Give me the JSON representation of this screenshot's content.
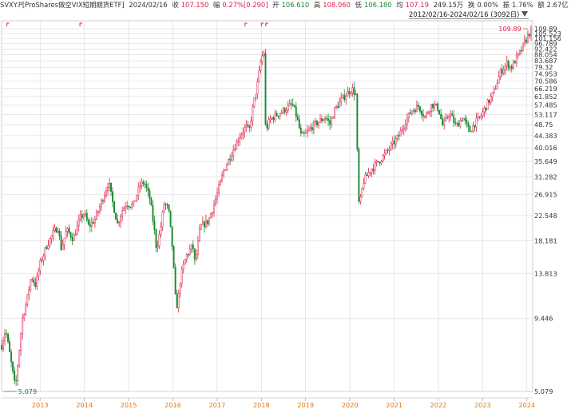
{
  "header": {
    "symbol": "SVXY.P[ProShares做空VIX短期期货ETF]",
    "date": "2024/02/16",
    "close_label": "收",
    "close": "107.150",
    "change_label": "幅",
    "change": "0.27%[0.290]",
    "open_label": "开",
    "open": "106.610",
    "high_label": "高",
    "high": "108.060",
    "low_label": "低",
    "low": "106.180",
    "avg_label": "均",
    "avg": "107.19",
    "volume": "249.15万",
    "turnover_label": "换",
    "turnover": "0.00%",
    "amplitude_label": "振",
    "amplitude": "1.76%",
    "amount_label": "额",
    "amount": "2.67亿"
  },
  "range": {
    "label": "2012/02/16-2024/02/16 (3092日)"
  },
  "colors": {
    "up": "#e0204a",
    "down": "#1a8a2f",
    "grid": "#d8d8d8",
    "axis_year": "#e07a10",
    "frame": "#b0b0b0"
  },
  "chart_data": {
    "type": "candlestick",
    "y_scale": "log",
    "ylim": [
      5.079,
      109.89
    ],
    "y_ticks": [
      5.079,
      9.446,
      13.813,
      18.181,
      22.548,
      26.915,
      31.282,
      35.649,
      40.016,
      44.383,
      48.75,
      53.117,
      57.485,
      61.852,
      66.219,
      70.586,
      74.953,
      79.32,
      83.687,
      88.054,
      92.422,
      96.789,
      101.156,
      105.523,
      109.89
    ],
    "x_ticks": [
      "2013",
      "2014",
      "2015",
      "2016",
      "2017",
      "2018",
      "2019",
      "2020",
      "2021",
      "2022",
      "2023",
      "2024"
    ],
    "x_range": [
      2012.13,
      2024.13
    ],
    "annotations": [
      {
        "label": "5.079",
        "x": 2012.18,
        "y": 5.079,
        "kind": "low"
      },
      {
        "label": "109.89",
        "x": 2024.02,
        "y": 109.89,
        "kind": "high"
      }
    ],
    "path": [
      [
        2012.13,
        7.5
      ],
      [
        2012.22,
        8.6
      ],
      [
        2012.3,
        7.2
      ],
      [
        2012.38,
        6.0
      ],
      [
        2012.44,
        5.2
      ],
      [
        2012.5,
        6.5
      ],
      [
        2012.6,
        9.4
      ],
      [
        2012.7,
        11.0
      ],
      [
        2012.8,
        13.5
      ],
      [
        2012.9,
        12.5
      ],
      [
        2013.0,
        15.0
      ],
      [
        2013.15,
        17.5
      ],
      [
        2013.3,
        19.5
      ],
      [
        2013.4,
        20.5
      ],
      [
        2013.48,
        17.0
      ],
      [
        2013.6,
        20.0
      ],
      [
        2013.75,
        18.5
      ],
      [
        2013.9,
        22.0
      ],
      [
        2014.0,
        23.0
      ],
      [
        2014.1,
        20.5
      ],
      [
        2014.25,
        22.0
      ],
      [
        2014.45,
        27.0
      ],
      [
        2014.55,
        30.0
      ],
      [
        2014.62,
        26.0
      ],
      [
        2014.75,
        21.0
      ],
      [
        2014.85,
        23.5
      ],
      [
        2014.95,
        25.0
      ],
      [
        2015.1,
        24.5
      ],
      [
        2015.25,
        29.0
      ],
      [
        2015.35,
        30.0
      ],
      [
        2015.48,
        26.0
      ],
      [
        2015.58,
        20.0
      ],
      [
        2015.63,
        17.0
      ],
      [
        2015.72,
        20.0
      ],
      [
        2015.8,
        25.0
      ],
      [
        2015.9,
        24.0
      ],
      [
        2016.0,
        16.5
      ],
      [
        2016.05,
        11.5
      ],
      [
        2016.1,
        10.4
      ],
      [
        2016.18,
        13.5
      ],
      [
        2016.3,
        16.0
      ],
      [
        2016.45,
        17.5
      ],
      [
        2016.5,
        15.0
      ],
      [
        2016.62,
        20.5
      ],
      [
        2016.8,
        21.5
      ],
      [
        2016.9,
        24.0
      ],
      [
        2017.0,
        27.0
      ],
      [
        2017.15,
        33.0
      ],
      [
        2017.35,
        39.0
      ],
      [
        2017.5,
        44.0
      ],
      [
        2017.65,
        48.0
      ],
      [
        2017.72,
        46.0
      ],
      [
        2017.82,
        58.0
      ],
      [
        2017.92,
        70.0
      ],
      [
        2018.0,
        86.0
      ],
      [
        2018.06,
        90.0
      ],
      [
        2018.1,
        43.0
      ],
      [
        2018.13,
        48.0
      ],
      [
        2018.2,
        51.0
      ],
      [
        2018.35,
        53.0
      ],
      [
        2018.5,
        55.0
      ],
      [
        2018.7,
        58.0
      ],
      [
        2018.8,
        52.0
      ],
      [
        2018.9,
        44.0
      ],
      [
        2019.0,
        45.0
      ],
      [
        2019.15,
        48.0
      ],
      [
        2019.3,
        50.0
      ],
      [
        2019.45,
        52.0
      ],
      [
        2019.55,
        49.0
      ],
      [
        2019.65,
        55.0
      ],
      [
        2019.8,
        60.0
      ],
      [
        2019.95,
        64.0
      ],
      [
        2020.05,
        66.0
      ],
      [
        2020.15,
        62.0
      ],
      [
        2020.18,
        26.0
      ],
      [
        2020.22,
        24.5
      ],
      [
        2020.3,
        30.0
      ],
      [
        2020.45,
        33.0
      ],
      [
        2020.6,
        35.0
      ],
      [
        2020.8,
        38.0
      ],
      [
        2020.95,
        41.0
      ],
      [
        2021.1,
        44.0
      ],
      [
        2021.25,
        50.0
      ],
      [
        2021.4,
        55.0
      ],
      [
        2021.55,
        57.0
      ],
      [
        2021.7,
        52.0
      ],
      [
        2021.85,
        58.0
      ],
      [
        2022.0,
        56.0
      ],
      [
        2022.1,
        48.0
      ],
      [
        2022.25,
        54.0
      ],
      [
        2022.4,
        48.0
      ],
      [
        2022.55,
        52.0
      ],
      [
        2022.7,
        46.0
      ],
      [
        2022.85,
        50.0
      ],
      [
        2022.95,
        52.0
      ],
      [
        2023.1,
        58.0
      ],
      [
        2023.25,
        64.0
      ],
      [
        2023.4,
        76.0
      ],
      [
        2023.55,
        82.0
      ],
      [
        2023.65,
        79.0
      ],
      [
        2023.75,
        85.0
      ],
      [
        2023.85,
        90.0
      ],
      [
        2023.95,
        98.0
      ],
      [
        2024.05,
        106.0
      ],
      [
        2024.1,
        107.15
      ]
    ]
  }
}
